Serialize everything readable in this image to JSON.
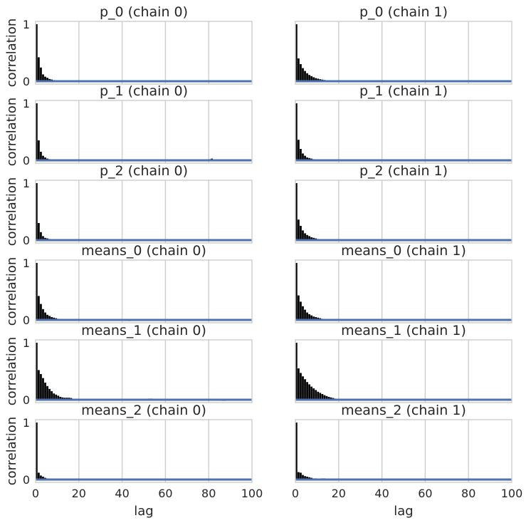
{
  "chart_data": {
    "type": "bar",
    "layout": "6 rows x 2 columns of autocorrelation panels",
    "xlabel": "lag",
    "ylabel": "correlation",
    "xlim": [
      0,
      100
    ],
    "ylim": [
      -0.05,
      1.05
    ],
    "x_ticks": [
      0,
      20,
      40,
      60,
      80,
      100
    ],
    "y_ticks": [
      0,
      1
    ],
    "grid": "vertical lines at x ticks",
    "zero_line_color": "#4c72b0",
    "bar_color": "#000000",
    "panels": [
      {
        "title": "p_0 (chain 0)",
        "values": [
          1.0,
          0.42,
          0.24,
          0.12,
          0.08,
          0.06,
          0.04,
          0.03,
          0.02,
          0.015,
          0.01,
          0.01,
          0.008,
          0.006,
          0.005,
          0.004,
          0.003,
          0.002,
          0.002,
          0.001,
          0.001,
          0.0,
          0.0,
          0.0,
          0.0,
          0.0,
          0.0,
          0.0,
          0.0,
          0.0,
          0.0,
          0.0,
          0.0,
          0.0,
          0.0,
          0.0,
          0.0,
          0.0,
          0.0,
          0.0,
          0.01,
          0.0,
          0.0,
          0.0,
          0.0,
          0.0,
          0.0,
          0.0,
          0.0,
          0.0,
          0.0,
          0.01,
          0.01,
          0.0,
          0.0,
          0.0,
          0.0,
          0.0,
          0.0,
          0.0,
          0.0,
          0.0,
          0.0,
          0.0,
          0.0,
          0.0,
          0.0,
          0.0,
          0.0,
          0.0,
          0.0,
          0.0,
          0.0,
          0.0,
          0.0,
          0.0,
          0.0,
          0.0,
          0.0,
          0.0,
          0.0,
          0.0,
          0.0,
          0.0,
          0.0,
          0.0,
          0.0,
          0.0,
          0.0,
          0.0,
          0.0,
          0.0,
          0.0,
          0.0,
          0.0,
          0.0,
          0.0,
          0.0,
          0.01,
          0.0
        ]
      },
      {
        "title": "p_0 (chain 1)",
        "values": [
          1.0,
          0.4,
          0.3,
          0.23,
          0.18,
          0.14,
          0.11,
          0.09,
          0.07,
          0.055,
          0.045,
          0.035,
          0.028,
          0.022,
          0.018,
          0.014,
          0.011,
          0.009,
          0.007,
          0.005,
          0.004,
          0.003,
          0.002,
          0.002,
          0.001,
          0.001,
          0.0,
          0.0,
          0.0,
          0.0,
          0.0,
          0.0,
          0.0,
          0.0,
          0.0,
          0.0,
          0.0,
          0.0,
          0.0,
          0.0,
          0.0,
          0.0,
          0.0,
          0.0,
          0.0,
          0.0,
          0.0,
          0.0,
          0.0,
          0.0,
          0.0,
          0.0,
          0.0,
          0.0,
          0.0,
          0.0,
          0.0,
          0.0,
          0.0,
          0.0,
          0.0,
          0.0,
          0.0,
          0.0,
          0.0,
          0.0,
          0.0,
          0.0,
          0.0,
          0.0,
          0.0,
          0.0,
          0.0,
          0.0,
          0.0,
          0.0,
          0.0,
          0.0,
          0.0,
          0.01,
          0.0,
          0.0,
          0.0,
          0.0,
          0.0,
          0.0,
          0.0,
          0.0,
          0.0,
          0.0,
          0.0,
          0.0,
          0.0,
          0.0,
          0.0,
          0.0,
          0.0,
          0.0,
          0.0,
          0.0
        ]
      },
      {
        "title": "p_1 (chain 0)",
        "values": [
          1.0,
          0.35,
          0.15,
          0.08,
          0.05,
          0.03,
          0.02,
          0.015,
          0.01,
          0.008,
          0.006,
          0.004,
          0.003,
          0.002,
          0.002,
          0.001,
          0.001,
          0.0,
          0.0,
          0.0,
          0.0,
          0.0,
          0.0,
          0.0,
          0.0,
          0.0,
          0.0,
          0.0,
          0.0,
          0.0,
          0.0,
          0.0,
          0.0,
          0.0,
          0.0,
          0.0,
          0.0,
          0.0,
          0.0,
          0.0,
          0.0,
          0.0,
          0.0,
          0.0,
          0.0,
          0.0,
          0.0,
          0.0,
          0.0,
          0.01,
          0.01,
          0.0,
          0.0,
          0.0,
          0.0,
          0.0,
          0.0,
          0.0,
          0.0,
          0.0,
          0.0,
          0.0,
          0.0,
          0.0,
          0.0,
          0.0,
          0.0,
          0.0,
          0.0,
          0.0,
          0.0,
          0.0,
          0.0,
          0.0,
          0.0,
          0.0,
          0.0,
          0.0,
          0.0,
          0.0,
          0.02,
          0.03,
          0.0,
          0.0,
          0.0,
          0.0,
          0.0,
          0.0,
          0.0,
          0.0,
          0.0,
          0.0,
          0.0,
          0.0,
          0.0,
          0.0,
          0.0,
          0.0,
          0.01,
          0.01
        ]
      },
      {
        "title": "p_1 (chain 1)",
        "values": [
          1.0,
          0.36,
          0.2,
          0.12,
          0.08,
          0.05,
          0.04,
          0.03,
          0.02,
          0.015,
          0.01,
          0.008,
          0.006,
          0.004,
          0.003,
          0.002,
          0.001,
          0.0,
          0.0,
          0.0,
          0.0,
          0.0,
          0.0,
          0.0,
          0.01,
          0.0,
          0.01,
          0.0,
          0.0,
          0.0,
          0.0,
          0.0,
          0.0,
          0.0,
          0.0,
          0.0,
          0.0,
          0.0,
          0.0,
          0.0,
          0.0,
          0.0,
          0.0,
          0.0,
          0.0,
          0.0,
          0.0,
          0.0,
          0.0,
          0.0,
          0.0,
          0.0,
          0.0,
          0.0,
          0.0,
          0.0,
          0.0,
          0.0,
          0.0,
          0.0,
          0.0,
          0.0,
          0.0,
          0.0,
          0.0,
          0.0,
          0.0,
          0.0,
          0.0,
          0.0,
          0.0,
          0.0,
          0.0,
          0.0,
          0.0,
          0.0,
          0.0,
          0.0,
          0.0,
          0.01,
          0.0,
          0.0,
          0.0,
          0.0,
          0.0,
          0.0,
          0.0,
          0.0,
          0.0,
          0.0,
          0.0,
          0.0,
          0.0,
          0.0,
          0.0,
          0.0,
          0.0,
          0.0,
          0.0,
          0.0
        ]
      },
      {
        "title": "p_2 (chain 0)",
        "values": [
          1.0,
          0.3,
          0.14,
          0.07,
          0.04,
          0.03,
          0.02,
          0.015,
          0.01,
          0.008,
          0.006,
          0.004,
          0.003,
          0.002,
          0.001,
          0.001,
          0.0,
          0.0,
          0.01,
          0.0,
          0.0,
          0.0,
          0.0,
          0.0,
          0.0,
          0.0,
          0.0,
          0.0,
          0.0,
          0.0,
          0.0,
          0.0,
          0.0,
          0.0,
          0.0,
          0.0,
          0.01,
          0.0,
          0.0,
          0.0,
          0.0,
          0.0,
          0.0,
          0.0,
          -0.01,
          0.0,
          0.0,
          0.0,
          0.0,
          0.0,
          0.0,
          0.0,
          0.0,
          0.0,
          0.0,
          0.0,
          0.0,
          0.0,
          0.0,
          -0.01,
          0.0,
          0.0,
          0.0,
          0.0,
          0.0,
          0.0,
          0.0,
          0.0,
          0.0,
          0.0,
          0.0,
          -0.01,
          0.0,
          0.0,
          0.0,
          0.0,
          0.0,
          0.0,
          0.0,
          0.0,
          0.0,
          0.0,
          0.0,
          0.0,
          0.0,
          0.0,
          0.0,
          0.0,
          0.0,
          0.0,
          0.0,
          0.0,
          0.0,
          0.0,
          0.0,
          0.0,
          0.0,
          0.0,
          0.0,
          0.0
        ]
      },
      {
        "title": "p_2 (chain 1)",
        "values": [
          1.0,
          0.36,
          0.25,
          0.17,
          0.12,
          0.09,
          0.07,
          0.05,
          0.04,
          0.03,
          0.02,
          0.015,
          0.01,
          0.008,
          0.006,
          0.004,
          0.003,
          0.002,
          0.001,
          0.0,
          0.0,
          0.0,
          0.0,
          0.0,
          0.0,
          0.0,
          0.0,
          0.0,
          0.0,
          0.0,
          -0.01,
          0.0,
          0.0,
          0.0,
          0.0,
          -0.01,
          0.0,
          0.0,
          0.0,
          0.0,
          0.0,
          0.0,
          0.0,
          0.0,
          0.0,
          0.0,
          0.0,
          0.0,
          0.0,
          0.0,
          0.0,
          0.0,
          0.0,
          0.0,
          0.0,
          0.0,
          0.0,
          0.0,
          0.0,
          0.0,
          0.0,
          0.0,
          0.0,
          0.0,
          0.0,
          0.0,
          0.0,
          0.0,
          0.0,
          0.0,
          0.0,
          0.0,
          0.0,
          0.0,
          0.0,
          0.0,
          0.0,
          0.0,
          0.0,
          0.0,
          0.0,
          0.0,
          0.0,
          0.0,
          0.0,
          -0.01,
          0.0,
          0.0,
          0.0,
          0.0,
          0.0,
          0.0,
          0.0,
          0.0,
          0.0,
          0.0,
          0.0,
          0.0,
          0.0,
          0.0
        ]
      },
      {
        "title": "means_0 (chain 0)",
        "values": [
          1.0,
          0.42,
          0.28,
          0.19,
          0.13,
          0.09,
          0.07,
          0.05,
          0.04,
          0.03,
          0.02,
          0.015,
          0.01,
          0.008,
          0.006,
          0.004,
          0.003,
          0.002,
          0.001,
          0.001,
          0.0,
          0.0,
          0.0,
          0.0,
          0.0,
          0.0,
          0.0,
          0.0,
          0.0,
          0.0,
          0.0,
          0.0,
          0.0,
          0.0,
          0.0,
          0.0,
          0.0,
          0.0,
          0.0,
          0.0,
          0.0,
          0.0,
          -0.01,
          -0.02,
          0.0,
          0.0,
          0.0,
          0.0,
          0.0,
          0.0,
          0.0,
          0.0,
          0.0,
          0.0,
          0.01,
          0.0,
          0.0,
          0.0,
          0.0,
          0.0,
          0.01,
          0.0,
          0.0,
          0.0,
          0.0,
          0.0,
          0.0,
          0.0,
          0.0,
          0.0,
          0.0,
          0.0,
          0.0,
          0.0,
          -0.01,
          0.0,
          0.0,
          0.0,
          0.0,
          0.0,
          0.0,
          0.0,
          0.0,
          0.0,
          0.0,
          0.0,
          0.0,
          0.0,
          0.0,
          -0.01,
          -0.01,
          0.0,
          0.0,
          0.0,
          0.0,
          0.0,
          0.0,
          0.0,
          0.0,
          0.0
        ]
      },
      {
        "title": "means_0 (chain 1)",
        "values": [
          1.0,
          0.43,
          0.32,
          0.24,
          0.18,
          0.13,
          0.1,
          0.08,
          0.06,
          0.05,
          0.04,
          0.03,
          0.02,
          0.015,
          0.01,
          0.008,
          0.006,
          0.004,
          0.003,
          0.002,
          0.001,
          0.0,
          0.0,
          0.0,
          0.01,
          0.01,
          0.0,
          0.0,
          0.0,
          0.0,
          0.0,
          0.0,
          0.01,
          0.0,
          0.0,
          0.0,
          0.0,
          0.0,
          0.0,
          0.0,
          0.0,
          0.0,
          0.0,
          0.0,
          0.0,
          0.0,
          0.0,
          0.0,
          0.0,
          0.0,
          0.0,
          0.0,
          0.0,
          0.0,
          0.0,
          0.0,
          0.0,
          0.0,
          0.0,
          0.0,
          0.0,
          0.0,
          0.0,
          0.0,
          0.0,
          0.0,
          0.0,
          0.0,
          0.0,
          0.0,
          0.0,
          0.0,
          0.0,
          0.0,
          0.0,
          0.0,
          0.0,
          0.0,
          0.0,
          0.0,
          0.0,
          0.0,
          0.0,
          0.0,
          0.0,
          0.0,
          0.0,
          0.0,
          0.0,
          0.0,
          0.0,
          0.0,
          0.0,
          0.0,
          0.0,
          0.0,
          0.0,
          0.0,
          0.0,
          0.0
        ]
      },
      {
        "title": "means_1 (chain 0)",
        "values": [
          1.0,
          0.52,
          0.45,
          0.38,
          0.3,
          0.24,
          0.19,
          0.15,
          0.11,
          0.09,
          0.07,
          0.05,
          0.04,
          0.035,
          0.035,
          0.035,
          0.03,
          0.01,
          0.005,
          0.003,
          0.002,
          0.0,
          0.0,
          0.0,
          0.0,
          0.0,
          0.0,
          0.0,
          0.0,
          0.0,
          0.0,
          0.0,
          0.0,
          0.0,
          0.0,
          0.0,
          0.0,
          0.0,
          0.0,
          0.0,
          0.0,
          0.0,
          -0.01,
          0.0,
          0.0,
          0.0,
          0.0,
          0.0,
          0.0,
          0.01,
          0.0,
          0.0,
          0.02,
          0.02,
          0.01,
          0.01,
          0.0,
          0.0,
          0.0,
          0.0,
          0.0,
          0.0,
          0.0,
          0.0,
          0.0,
          0.0,
          0.0,
          0.0,
          0.0,
          0.0,
          0.0,
          0.0,
          0.0,
          0.0,
          0.0,
          0.0,
          0.0,
          0.0,
          0.0,
          0.0,
          0.0,
          0.0,
          0.0,
          0.0,
          0.0,
          -0.01,
          -0.02,
          -0.02,
          0.0,
          0.0,
          0.0,
          0.0,
          0.0,
          0.0,
          0.0,
          0.0,
          0.0,
          0.0,
          0.0,
          0.0
        ]
      },
      {
        "title": "means_1 (chain 1)",
        "values": [
          1.0,
          0.55,
          0.47,
          0.41,
          0.36,
          0.31,
          0.27,
          0.23,
          0.2,
          0.17,
          0.14,
          0.12,
          0.1,
          0.08,
          0.065,
          0.05,
          0.04,
          0.03,
          0.02,
          0.015,
          0.01,
          0.005,
          0.003,
          0.002,
          0.001,
          0.0,
          0.0,
          0.0,
          0.0,
          0.0,
          0.0,
          0.0,
          0.0,
          0.0,
          0.0,
          0.0,
          0.0,
          0.0,
          0.0,
          0.0,
          0.0,
          0.0,
          0.0,
          0.0,
          0.0,
          0.0,
          0.0,
          0.0,
          0.0,
          0.0,
          0.0,
          0.0,
          0.0,
          0.0,
          0.0,
          0.0,
          0.0,
          0.0,
          0.0,
          0.0,
          0.0,
          0.0,
          0.0,
          0.0,
          0.0,
          0.0,
          0.0,
          0.0,
          0.0,
          0.0,
          0.0,
          0.0,
          0.0,
          0.0,
          0.0,
          0.0,
          0.0,
          0.0,
          0.0,
          0.0,
          0.0,
          0.0,
          0.0,
          0.0,
          0.0,
          0.0,
          0.0,
          0.0,
          0.0,
          0.0,
          0.0,
          0.0,
          0.0,
          0.0,
          0.0,
          0.0,
          0.01,
          0.01,
          0.0,
          0.0
        ]
      },
      {
        "title": "means_2 (chain 0)",
        "values": [
          1.0,
          0.12,
          0.07,
          0.05,
          0.03,
          0.02,
          0.015,
          0.01,
          0.008,
          0.006,
          0.004,
          0.003,
          0.002,
          0.001,
          0.0,
          0.01,
          0.0,
          0.0,
          0.0,
          0.0,
          0.0,
          0.0,
          0.0,
          0.0,
          0.0,
          0.0,
          0.0,
          0.0,
          0.0,
          0.0,
          0.0,
          0.0,
          0.0,
          0.0,
          0.0,
          0.0,
          0.0,
          0.0,
          0.0,
          0.0,
          0.0,
          0.0,
          0.0,
          0.01,
          0.0,
          0.0,
          0.0,
          0.0,
          0.0,
          0.0,
          0.0,
          0.0,
          0.0,
          0.0,
          0.0,
          0.0,
          0.0,
          0.0,
          0.0,
          0.0,
          -0.01,
          0.0,
          0.0,
          0.0,
          0.0,
          0.0,
          0.0,
          0.0,
          0.0,
          0.0,
          0.0,
          0.0,
          0.0,
          0.0,
          0.0,
          0.0,
          0.0,
          0.0,
          0.0,
          0.0,
          0.0,
          0.0,
          0.0,
          0.0,
          0.0,
          0.0,
          0.0,
          0.0,
          0.01,
          0.0,
          0.0,
          0.0,
          0.0,
          0.0,
          0.0,
          0.0,
          0.0,
          0.0,
          0.0,
          0.0
        ]
      },
      {
        "title": "means_2 (chain 1)",
        "values": [
          1.0,
          0.13,
          0.12,
          0.08,
          0.06,
          0.05,
          0.04,
          0.03,
          0.02,
          0.02,
          0.01,
          0.01,
          0.02,
          0.02,
          0.01,
          0.005,
          0.003,
          0.002,
          0.0,
          0.0,
          0.0,
          0.0,
          0.0,
          0.0,
          0.0,
          0.0,
          0.0,
          0.0,
          0.0,
          0.0,
          0.0,
          0.0,
          0.0,
          0.0,
          0.0,
          0.0,
          0.0,
          0.0,
          0.0,
          0.0,
          0.0,
          0.0,
          0.0,
          0.0,
          0.0,
          0.0,
          0.0,
          0.0,
          0.0,
          0.0,
          0.0,
          0.0,
          0.0,
          0.0,
          0.0,
          0.0,
          0.0,
          0.0,
          0.0,
          0.0,
          0.0,
          0.0,
          0.0,
          0.0,
          0.0,
          0.0,
          0.0,
          0.0,
          0.0,
          0.0,
          0.0,
          0.0,
          0.0,
          0.0,
          0.0,
          0.0,
          0.0,
          0.0,
          0.0,
          0.01,
          0.01,
          0.0,
          0.0,
          0.0,
          0.0,
          0.01,
          0.0,
          0.0,
          0.0,
          0.0,
          0.0,
          0.0,
          0.0,
          0.0,
          0.0,
          0.0,
          0.0,
          0.0,
          0.0,
          0.0
        ]
      }
    ]
  }
}
